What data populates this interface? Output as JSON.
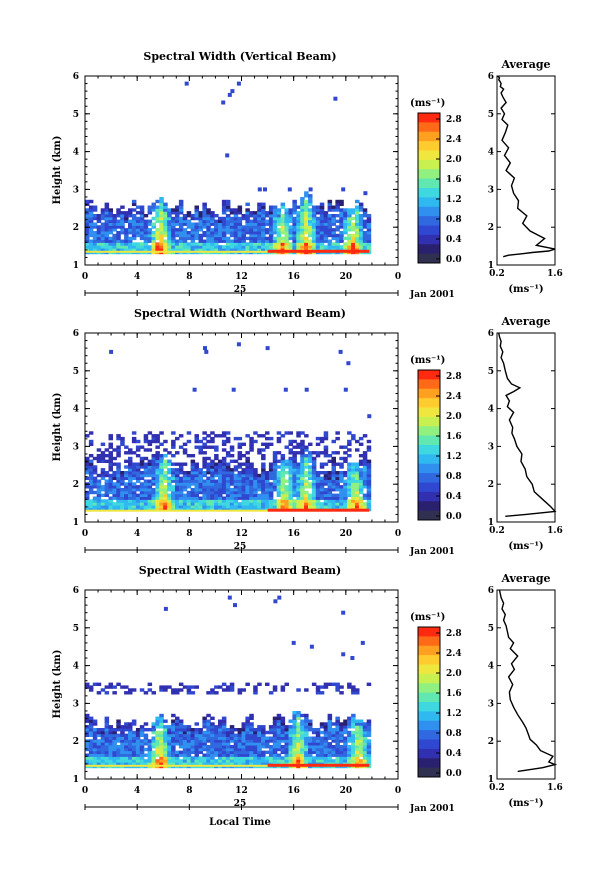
{
  "figure": {
    "x_label": "Local Time",
    "date_label": "Jan 2001",
    "day_label": "25"
  },
  "colorbar": {
    "unit_label": "(ms⁻¹)",
    "tick_labels": [
      "2.8",
      "2.4",
      "2.0",
      "1.6",
      "1.2",
      "0.8",
      "0.4",
      "0.0"
    ],
    "colors": [
      "#ff2a10",
      "#ff6a18",
      "#ffa020",
      "#ffcc30",
      "#f0e640",
      "#c8f050",
      "#90f080",
      "#60e8b0",
      "#40d8e0",
      "#30b8f0",
      "#3090f0",
      "#3068e0",
      "#3048d0",
      "#3030b0",
      "#2a2070",
      "#303050"
    ]
  },
  "chart_data": [
    {
      "type": "heatmap",
      "title": "Spectral Width (Vertical Beam)",
      "xlabel": "",
      "ylabel": "Height (km)",
      "x_ticks": [
        "0",
        "4",
        "8",
        "12",
        "16",
        "20",
        "0"
      ],
      "y_ticks": [
        "1",
        "2",
        "3",
        "4",
        "5",
        "6"
      ],
      "xlim": [
        0,
        24
      ],
      "ylim": [
        1,
        6
      ],
      "colorbar_label": "(ms⁻¹)",
      "colorbar_range": [
        0.0,
        3.0
      ],
      "data_extent_hours": [
        0,
        21.8
      ],
      "dense_layer_top_km": 2.5,
      "peak_height_km": 1.35,
      "convective_plumes": [
        {
          "time_h": 5.6,
          "top_km": 2.8,
          "width": 2.0
        },
        {
          "time_h": 15.0,
          "top_km": 2.5,
          "width": 1.6
        },
        {
          "time_h": 16.8,
          "top_km": 2.9,
          "width": 1.8
        },
        {
          "time_h": 20.4,
          "top_km": 2.5,
          "width": 1.8
        }
      ],
      "sparse_echoes": [
        {
          "time_h": 11.1,
          "height_km": 5.5
        },
        {
          "time_h": 11.3,
          "height_km": 5.6
        },
        {
          "time_h": 10.6,
          "height_km": 5.3
        },
        {
          "time_h": 11.8,
          "height_km": 5.8
        },
        {
          "time_h": 7.8,
          "height_km": 5.8
        },
        {
          "time_h": 19.2,
          "height_km": 5.4
        },
        {
          "time_h": 10.9,
          "height_km": 3.9
        },
        {
          "time_h": 13.4,
          "height_km": 3.0
        },
        {
          "time_h": 13.8,
          "height_km": 3.0
        },
        {
          "time_h": 15.7,
          "height_km": 3.0
        },
        {
          "time_h": 17.3,
          "height_km": 3.0
        },
        {
          "time_h": 19.8,
          "height_km": 3.0
        },
        {
          "time_h": 21.5,
          "height_km": 2.9
        }
      ]
    },
    {
      "type": "heatmap",
      "title": "Spectral Width (Northward Beam)",
      "xlabel": "",
      "ylabel": "Height (km)",
      "x_ticks": [
        "0",
        "4",
        "8",
        "12",
        "16",
        "20",
        "0"
      ],
      "y_ticks": [
        "1",
        "2",
        "3",
        "4",
        "5",
        "6"
      ],
      "xlim": [
        0,
        24
      ],
      "ylim": [
        1,
        6
      ],
      "colorbar_label": "(ms⁻¹)",
      "colorbar_range": [
        0.0,
        3.0
      ],
      "data_extent_hours": [
        0,
        21.8
      ],
      "dense_layer_top_km": 2.5,
      "peak_height_km": 1.3,
      "upper_layer_km": [
        2.5,
        3.4
      ],
      "convective_plumes": [
        {
          "time_h": 5.9,
          "top_km": 2.8,
          "width": 1.8
        },
        {
          "time_h": 15.2,
          "top_km": 2.6,
          "width": 1.6
        },
        {
          "time_h": 16.8,
          "top_km": 2.9,
          "width": 1.6
        },
        {
          "time_h": 20.6,
          "top_km": 2.4,
          "width": 1.6
        }
      ],
      "sparse_echoes": [
        {
          "time_h": 2.0,
          "height_km": 5.5
        },
        {
          "time_h": 9.2,
          "height_km": 5.6
        },
        {
          "time_h": 9.3,
          "height_km": 5.5
        },
        {
          "time_h": 11.8,
          "height_km": 5.7
        },
        {
          "time_h": 14.0,
          "height_km": 5.6
        },
        {
          "time_h": 19.6,
          "height_km": 5.5
        },
        {
          "time_h": 20.2,
          "height_km": 5.2
        },
        {
          "time_h": 8.4,
          "height_km": 4.5
        },
        {
          "time_h": 11.4,
          "height_km": 4.5
        },
        {
          "time_h": 15.4,
          "height_km": 4.5
        },
        {
          "time_h": 17.0,
          "height_km": 4.5
        },
        {
          "time_h": 20.0,
          "height_km": 4.5
        },
        {
          "time_h": 21.8,
          "height_km": 3.8
        }
      ]
    },
    {
      "type": "heatmap",
      "title": "Spectral Width (Eastward Beam)",
      "xlabel": "Local Time",
      "ylabel": "Height (km)",
      "x_ticks": [
        "0",
        "4",
        "8",
        "12",
        "16",
        "20",
        "0"
      ],
      "y_ticks": [
        "1",
        "2",
        "3",
        "4",
        "5",
        "6"
      ],
      "xlim": [
        0,
        24
      ],
      "ylim": [
        1,
        6
      ],
      "colorbar_label": "(ms⁻¹)",
      "colorbar_range": [
        0.0,
        3.0
      ],
      "data_extent_hours": [
        0,
        21.8
      ],
      "dense_layer_top_km": 2.5,
      "peak_height_km": 1.35,
      "upper_layer_km": [
        3.2,
        3.5
      ],
      "convective_plumes": [
        {
          "time_h": 5.6,
          "top_km": 2.7,
          "width": 1.8
        },
        {
          "time_h": 16.2,
          "top_km": 2.8,
          "width": 1.6
        },
        {
          "time_h": 20.8,
          "top_km": 2.6,
          "width": 1.6
        }
      ],
      "sparse_echoes": [
        {
          "time_h": 6.2,
          "height_km": 5.5
        },
        {
          "time_h": 11.1,
          "height_km": 5.8
        },
        {
          "time_h": 11.5,
          "height_km": 5.6
        },
        {
          "time_h": 14.6,
          "height_km": 5.7
        },
        {
          "time_h": 14.9,
          "height_km": 5.8
        },
        {
          "time_h": 19.8,
          "height_km": 5.4
        },
        {
          "time_h": 16.0,
          "height_km": 4.6
        },
        {
          "time_h": 17.4,
          "height_km": 4.5
        },
        {
          "time_h": 21.3,
          "height_km": 4.6
        },
        {
          "time_h": 19.8,
          "height_km": 4.3
        },
        {
          "time_h": 20.5,
          "height_km": 4.2
        }
      ]
    },
    {
      "type": "line",
      "title": "Average",
      "xlabel": "(ms⁻¹)",
      "ylabel": "",
      "x_ticks": [
        "0.2",
        "1.6"
      ],
      "y_ticks": [
        "1",
        "2",
        "3",
        "4",
        "5",
        "6"
      ],
      "xlim": [
        0.2,
        1.6
      ],
      "ylim": [
        1,
        6
      ],
      "x": [
        0.35,
        0.48,
        0.82,
        1.05,
        1.45,
        1.62,
        1.15,
        1.35,
        1.0,
        0.82,
        0.92,
        0.7,
        0.72,
        0.6,
        0.55,
        0.62,
        0.42,
        0.52,
        0.38,
        0.48,
        0.32,
        0.4,
        0.46,
        0.32,
        0.38,
        0.3,
        0.42,
        0.34,
        0.3,
        0.36,
        0.28,
        0.3,
        0.27,
        0.24,
        0.26,
        0.22
      ],
      "y": [
        1.22,
        1.26,
        1.3,
        1.33,
        1.37,
        1.42,
        1.52,
        1.7,
        1.9,
        2.1,
        2.3,
        2.5,
        2.7,
        2.9,
        3.1,
        3.3,
        3.5,
        3.7,
        3.9,
        4.1,
        4.3,
        4.5,
        4.7,
        4.85,
        5.0,
        5.15,
        5.3,
        5.45,
        5.55,
        5.65,
        5.72,
        5.8,
        5.86,
        5.9,
        5.95,
        6.0
      ]
    },
    {
      "type": "line",
      "title": "Average",
      "xlabel": "(ms⁻¹)",
      "ylabel": "",
      "x_ticks": [
        "0.2",
        "1.6"
      ],
      "y_ticks": [
        "1",
        "2",
        "3",
        "4",
        "5",
        "6"
      ],
      "xlim": [
        0.2,
        1.6
      ],
      "ylim": [
        1,
        6
      ],
      "x": [
        0.4,
        0.9,
        1.6,
        1.5,
        1.3,
        1.1,
        1.05,
        0.92,
        0.88,
        0.78,
        0.8,
        0.68,
        0.62,
        0.56,
        0.58,
        0.5,
        0.6,
        0.45,
        0.5,
        0.42,
        0.6,
        0.75,
        0.55,
        0.45,
        0.4,
        0.36,
        0.3,
        0.34,
        0.28,
        0.3,
        0.26,
        0.24
      ],
      "y": [
        1.15,
        1.2,
        1.28,
        1.4,
        1.6,
        1.8,
        2.0,
        2.2,
        2.4,
        2.6,
        2.8,
        3.0,
        3.2,
        3.35,
        3.5,
        3.7,
        3.9,
        4.05,
        4.2,
        4.35,
        4.45,
        4.55,
        4.65,
        4.8,
        5.0,
        5.2,
        5.35,
        5.5,
        5.65,
        5.78,
        5.9,
        6.0
      ]
    },
    {
      "type": "line",
      "title": "Average",
      "xlabel": "(ms⁻¹)",
      "ylabel": "",
      "x_ticks": [
        "0.2",
        "1.6"
      ],
      "y_ticks": [
        "1",
        "2",
        "3",
        "4",
        "5",
        "6"
      ],
      "xlim": [
        0.2,
        1.6
      ],
      "ylim": [
        1,
        6
      ],
      "x": [
        0.7,
        1.3,
        1.6,
        1.45,
        1.55,
        1.25,
        1.15,
        1.0,
        0.95,
        0.9,
        0.82,
        0.7,
        0.6,
        0.52,
        0.5,
        0.58,
        0.48,
        0.62,
        0.55,
        0.7,
        0.52,
        0.6,
        0.48,
        0.45,
        0.42,
        0.36,
        0.4,
        0.32,
        0.36,
        0.3,
        0.26
      ],
      "y": [
        1.2,
        1.3,
        1.38,
        1.45,
        1.6,
        1.75,
        1.9,
        2.05,
        2.2,
        2.35,
        2.5,
        2.7,
        2.9,
        3.1,
        3.3,
        3.5,
        3.7,
        3.9,
        4.05,
        4.25,
        4.45,
        4.6,
        4.75,
        4.9,
        5.05,
        5.2,
        5.35,
        5.5,
        5.65,
        5.8,
        6.0
      ]
    }
  ]
}
